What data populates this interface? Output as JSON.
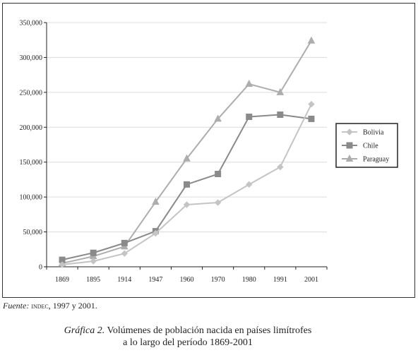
{
  "chart_data": {
    "type": "line",
    "categories": [
      "1869",
      "1895",
      "1914",
      "1947",
      "1960",
      "1970",
      "1980",
      "1991",
      "2001"
    ],
    "ylim": [
      0,
      350000
    ],
    "yticks": [
      0,
      50000,
      100000,
      150000,
      200000,
      250000,
      300000,
      350000
    ],
    "ytick_labels": [
      "0",
      "50,000",
      "100,000",
      "150,000",
      "200,000",
      "250,000",
      "300,000",
      "350,000"
    ],
    "grid": true,
    "legend_position": "right",
    "series": [
      {
        "name": "Bolivia",
        "marker": "diamond",
        "color": "#c4c4c4",
        "values": [
          3000,
          8000,
          19000,
          48000,
          89000,
          92000,
          118000,
          143000,
          233000
        ]
      },
      {
        "name": "Chile",
        "marker": "square",
        "color": "#8a8a8a",
        "values": [
          10000,
          20000,
          34000,
          51000,
          118000,
          133000,
          215000,
          218000,
          212000
        ]
      },
      {
        "name": "Paraguay",
        "marker": "triangle",
        "color": "#adadad",
        "values": [
          5000,
          15000,
          29000,
          93000,
          155000,
          212000,
          262000,
          250000,
          324000
        ]
      }
    ]
  },
  "source": {
    "prefix": "Fuente:",
    "org": "indec",
    "years": ", 1997 y 2001."
  },
  "caption": {
    "prefix": "Gráfica 2.",
    "line1": " Volúmenes de población nacida en países limítrofes",
    "line2": "a lo largo del período 1869-2001"
  }
}
